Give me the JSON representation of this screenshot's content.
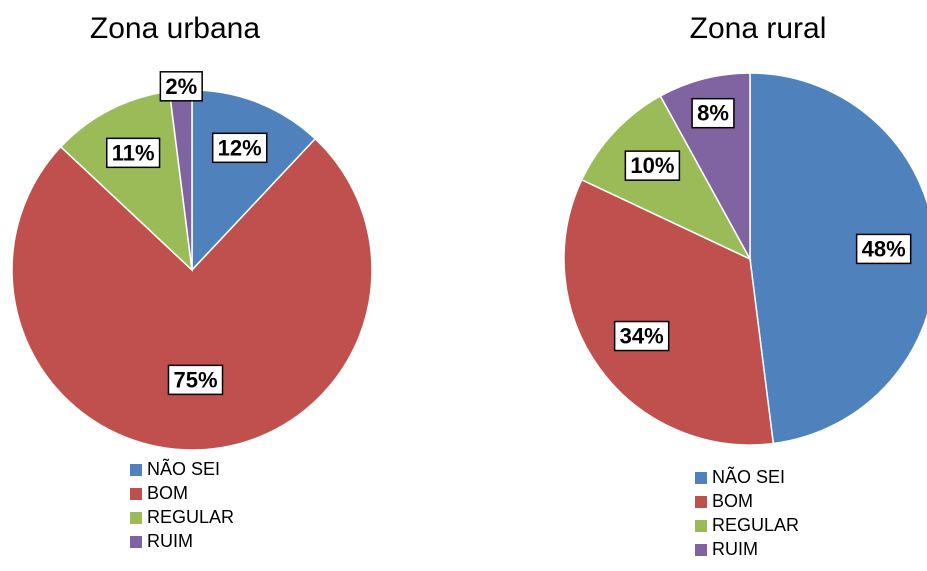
{
  "chart_data": [
    {
      "type": "pie",
      "title": "Zona urbana",
      "categories": [
        "NÃO SEI",
        "BOM",
        "REGULAR",
        "RUIM"
      ],
      "values": [
        12,
        75,
        11,
        2
      ],
      "value_labels": [
        "12%",
        "75%",
        "11%",
        "2%"
      ],
      "colors": [
        "#4f81bd",
        "#c0504d",
        "#9bbb59",
        "#8064a2"
      ]
    },
    {
      "type": "pie",
      "title": "Zona rural",
      "categories": [
        "NÃO SEI",
        "BOM",
        "REGULAR",
        "RUIM"
      ],
      "values": [
        48,
        34,
        10,
        8
      ],
      "value_labels": [
        "48%",
        "34%",
        "10%",
        "8%"
      ],
      "colors": [
        "#4f81bd",
        "#c0504d",
        "#9bbb59",
        "#8064a2"
      ]
    }
  ]
}
